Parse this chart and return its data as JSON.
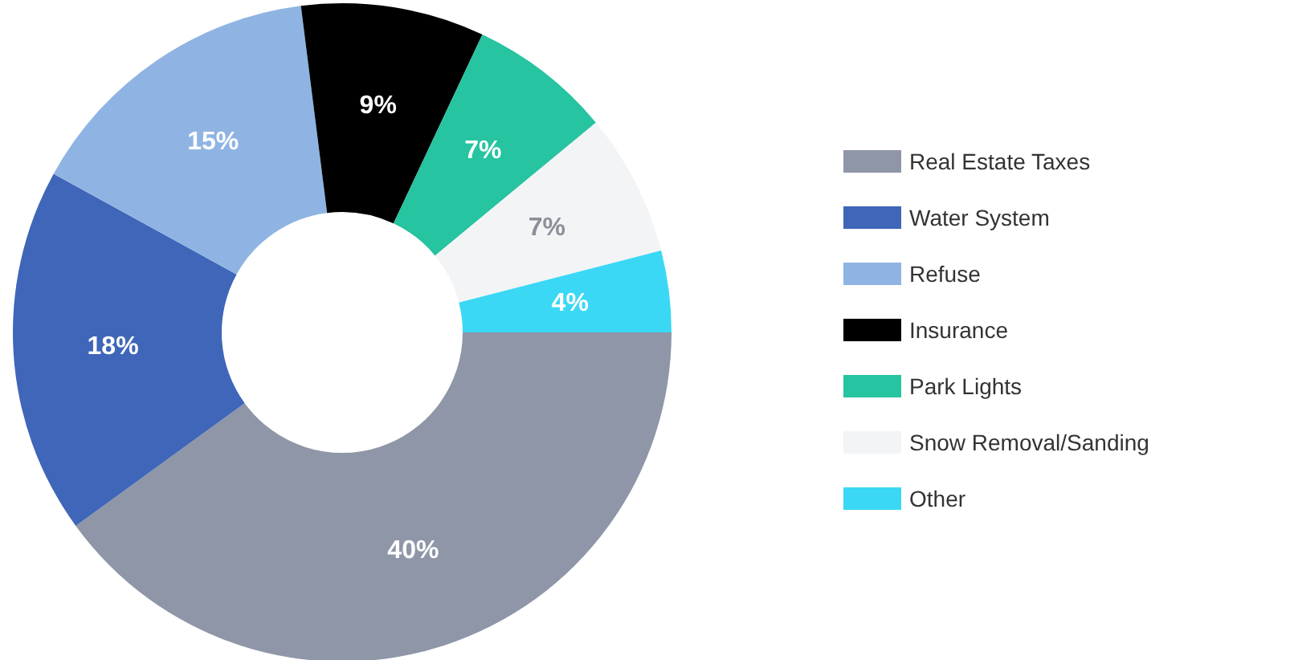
{
  "chart_data": {
    "type": "donut",
    "categories": [
      "Real Estate Taxes",
      "Water System",
      "Refuse",
      "Insurance",
      "Park Lights",
      "Snow Removal/Sanding",
      "Other"
    ],
    "values": [
      40,
      18,
      15,
      9,
      7,
      7,
      4
    ],
    "colors": [
      "#8e96a8",
      "#3f66b8",
      "#8fb4e3",
      "#000000",
      "#26c4a0",
      "#f3f4f6",
      "#3ad8f5"
    ],
    "value_labels": [
      "40%",
      "18%",
      "15%",
      "9%",
      "7%",
      "7%",
      "4%"
    ],
    "legend": "right"
  }
}
